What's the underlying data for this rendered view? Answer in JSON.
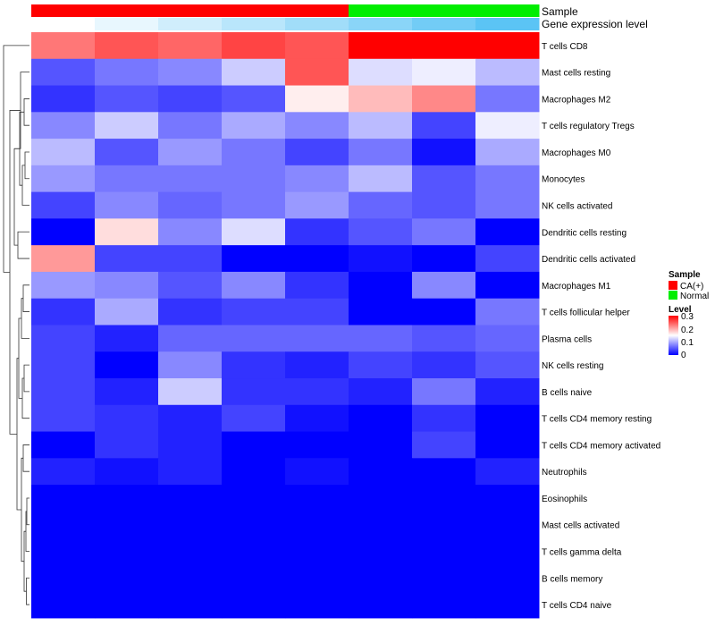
{
  "chart_data": {
    "type": "heatmap",
    "row_labels": [
      "T cells CD8",
      "Mast cells resting",
      "Macrophages M2",
      "T cells regulatory  Tregs",
      "Macrophages M0",
      "Monocytes",
      "NK cells activated",
      "Dendritic cells resting",
      "Dendritic cells activated",
      "Macrophages M1",
      "T cells follicular helper",
      "Plasma cells",
      "NK cells resting",
      "B cells naive",
      "T cells CD4 memory resting",
      "T cells CD4 memory activated",
      "Neutrophils",
      "Eosinophils",
      "Mast cells activated",
      "T cells gamma delta",
      "B cells memory",
      "T cells CD4 naive"
    ],
    "samples": [
      "CA(+)",
      "CA(+)",
      "CA(+)",
      "CA(+)",
      "CA(+)",
      "Normal",
      "Normal",
      "Normal"
    ],
    "gene_expression_level": [
      0.0,
      0.04,
      0.08,
      0.12,
      0.16,
      0.2,
      0.24,
      0.28
    ],
    "values": [
      [
        0.23,
        0.25,
        0.24,
        0.26,
        0.25,
        0.3,
        0.3,
        0.3
      ],
      [
        0.05,
        0.07,
        0.08,
        0.12,
        0.25,
        0.13,
        0.14,
        0.11
      ],
      [
        0.03,
        0.05,
        0.04,
        0.05,
        0.16,
        0.19,
        0.22,
        0.07
      ],
      [
        0.08,
        0.12,
        0.07,
        0.1,
        0.08,
        0.11,
        0.04,
        0.14
      ],
      [
        0.11,
        0.05,
        0.09,
        0.07,
        0.04,
        0.07,
        0.01,
        0.1
      ],
      [
        0.09,
        0.07,
        0.07,
        0.07,
        0.08,
        0.11,
        0.05,
        0.07
      ],
      [
        0.04,
        0.08,
        0.06,
        0.07,
        0.09,
        0.06,
        0.05,
        0.07
      ],
      [
        0.0,
        0.17,
        0.08,
        0.13,
        0.03,
        0.05,
        0.07,
        0.0
      ],
      [
        0.21,
        0.04,
        0.04,
        0.0,
        0.0,
        0.01,
        0.0,
        0.04
      ],
      [
        0.09,
        0.08,
        0.05,
        0.08,
        0.03,
        0.0,
        0.08,
        0.0
      ],
      [
        0.03,
        0.1,
        0.03,
        0.04,
        0.04,
        0.0,
        0.0,
        0.07
      ],
      [
        0.04,
        0.02,
        0.06,
        0.06,
        0.06,
        0.06,
        0.05,
        0.06
      ],
      [
        0.04,
        0.0,
        0.08,
        0.03,
        0.02,
        0.04,
        0.03,
        0.05
      ],
      [
        0.04,
        0.02,
        0.12,
        0.03,
        0.03,
        0.02,
        0.07,
        0.02
      ],
      [
        0.04,
        0.03,
        0.02,
        0.04,
        0.01,
        0.0,
        0.03,
        0.0
      ],
      [
        0.0,
        0.03,
        0.02,
        0.0,
        0.0,
        0.0,
        0.04,
        0.0
      ],
      [
        0.02,
        0.01,
        0.02,
        0.0,
        0.01,
        0.0,
        0.0,
        0.02
      ],
      [
        0.0,
        0.0,
        0.0,
        0.0,
        0.0,
        0.0,
        0.0,
        0.0
      ],
      [
        0.0,
        0.0,
        0.0,
        0.0,
        0.0,
        0.0,
        0.0,
        0.0
      ],
      [
        0.0,
        0.0,
        0.0,
        0.0,
        0.0,
        0.0,
        0.0,
        0.0
      ],
      [
        0.0,
        0.0,
        0.0,
        0.0,
        0.0,
        0.0,
        0.0,
        0.0
      ],
      [
        0.0,
        0.0,
        0.0,
        0.0,
        0.0,
        0.0,
        0.0,
        0.0
      ]
    ],
    "color_scale": {
      "min": 0,
      "mid": 0.15,
      "max": 0.3,
      "low": "#0000ff",
      "middle": "#ffffff",
      "high": "#ff0000"
    },
    "gene_expression_scale": {
      "low": "#ffffff",
      "high": "#5bc4f5"
    }
  },
  "annotation_labels": {
    "sample": "Sample",
    "gene_expression": "Gene expression level"
  },
  "legend": {
    "sample_title": "Sample",
    "sample_items": [
      {
        "label": "CA(+)",
        "color": "#ff0000"
      },
      {
        "label": "Normal",
        "color": "#00ee00"
      }
    ],
    "level_title": "Level",
    "level_ticks": [
      "0.3",
      "0.2",
      "0.1",
      "0"
    ]
  }
}
